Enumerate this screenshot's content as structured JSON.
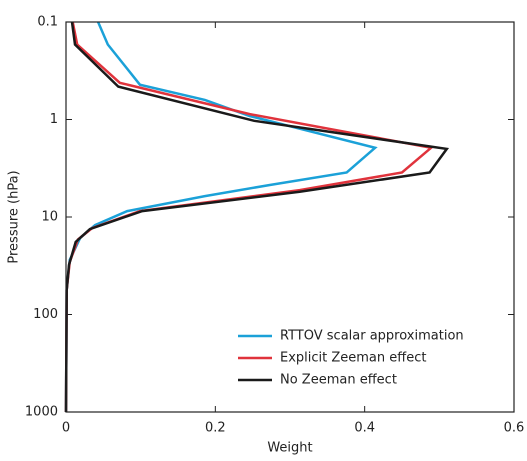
{
  "chart_data": {
    "type": "line",
    "xlabel": "Weight",
    "ylabel": "Pressure (hPa)",
    "xlim": [
      0,
      0.6
    ],
    "xticks": [
      0,
      0.2,
      0.4,
      0.6
    ],
    "ylim": [
      0.1,
      1000
    ],
    "yticks": [
      0.1,
      1,
      10,
      100,
      1000
    ],
    "ylog": true,
    "yinverted": true,
    "legend": "lower right",
    "series": [
      {
        "name": "RTTOV scalar approximation",
        "color": "#1ba1d8",
        "x": [
          0.043,
          0.056,
          0.099,
          0.186,
          0.246,
          0.414,
          0.376,
          0.273,
          0.186,
          0.082,
          0.039,
          0.019,
          0.005,
          0.001,
          0
        ],
        "values": [
          0.1,
          0.17,
          0.44,
          0.63,
          0.92,
          1.95,
          3.5,
          4.7,
          6.1,
          8.7,
          12.1,
          16.4,
          27.6,
          56,
          1000
        ]
      },
      {
        "name": "Explicit Zeeman effect",
        "color": "#e0333c",
        "x": [
          0.009,
          0.015,
          0.072,
          0.246,
          0.489,
          0.45,
          0.313,
          0.099,
          0.035,
          0.016,
          0.005,
          0.001,
          0
        ],
        "values": [
          0.1,
          0.17,
          0.42,
          0.88,
          1.95,
          3.5,
          5.3,
          8.7,
          13,
          17,
          29,
          56,
          1000
        ]
      },
      {
        "name": "No Zeeman effect",
        "color": "#1a1a1a",
        "x": [
          0.008,
          0.012,
          0.07,
          0.252,
          0.51,
          0.487,
          0.313,
          0.102,
          0.032,
          0.013,
          0.004,
          0.001,
          0
        ],
        "values": [
          0.1,
          0.17,
          0.46,
          1.03,
          2.0,
          3.5,
          5.5,
          8.7,
          13.3,
          18,
          31,
          56,
          1000
        ]
      }
    ]
  }
}
